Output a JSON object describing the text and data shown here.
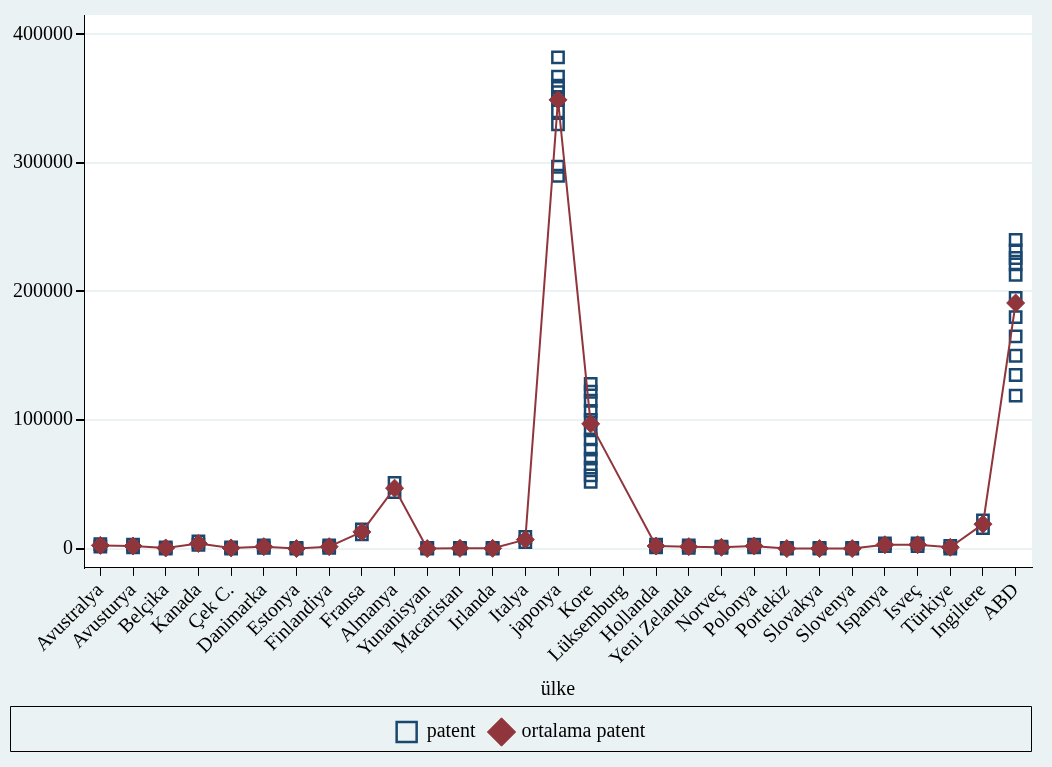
{
  "chart_data": {
    "type": "line",
    "xlabel": "ülke",
    "categories": [
      "Avustralya",
      "Avusturya",
      "Belçika",
      "Kanada",
      "Çek C.",
      "Danimarka",
      "Estonya",
      "Finlandiya",
      "Fransa",
      "Almanya",
      "Yunanisyan",
      "Macaristan",
      "Irlanda",
      "Italya",
      "japonya",
      "Kore",
      "Lüksemburg",
      "Hollanda",
      "Yeni Zelanda",
      "Norveç",
      "Polonya",
      "Portekiz",
      "Slovakya",
      "Slovenya",
      "Ispanya",
      "Isveç",
      "Türkiye",
      "Ingiltere",
      "ABD"
    ],
    "series": [
      {
        "name": "patent",
        "type": "scatter",
        "marker": "square",
        "color": "#1a476f",
        "x": [
          "Avustralya",
          "Avustralya",
          "Avusturya",
          "Avusturya",
          "Belçika",
          "Belçika",
          "Kanada",
          "Kanada",
          "Çek C.",
          "Çek C.",
          "Danimarka",
          "Danimarka",
          "Estonya",
          "Estonya",
          "Finlandiya",
          "Finlandiya",
          "Fransa",
          "Fransa",
          "Almanya",
          "Almanya",
          "Yunanisyan",
          "Yunanisyan",
          "Macaristan",
          "Macaristan",
          "Irlanda",
          "Irlanda",
          "Italya",
          "Italya",
          "japonya",
          "japonya",
          "japonya",
          "japonya",
          "japonya",
          "japonya",
          "japonya",
          "japonya",
          "japonya",
          "Kore",
          "Kore",
          "Kore",
          "Kore",
          "Kore",
          "Kore",
          "Kore",
          "Kore",
          "Kore",
          "Kore",
          "Kore",
          "Kore",
          "Hollanda",
          "Hollanda",
          "Yeni Zelanda",
          "Yeni Zelanda",
          "Norveç",
          "Norveç",
          "Polonya",
          "Polonya",
          "Portekiz",
          "Portekiz",
          "Slovakya",
          "Slovakya",
          "Slovenya",
          "Slovenya",
          "Ispanya",
          "Ispanya",
          "Isveç",
          "Isveç",
          "Türkiye",
          "Türkiye",
          "Ingiltere",
          "Ingiltere",
          "ABD",
          "ABD",
          "ABD",
          "ABD",
          "ABD",
          "ABD",
          "ABD",
          "ABD",
          "ABD",
          "ABD",
          "ABD"
        ],
        "values": [
          1500,
          3500,
          1000,
          3000,
          0,
          1000,
          3000,
          5500,
          0,
          1000,
          500,
          2500,
          0,
          500,
          500,
          2500,
          11000,
          15000,
          44000,
          51000,
          0,
          500,
          0,
          500,
          0,
          500,
          5000,
          9000,
          382000,
          367000,
          360000,
          355000,
          350000,
          340000,
          330000,
          297000,
          290000,
          128000,
          122000,
          115000,
          107000,
          100000,
          92000,
          85000,
          77000,
          70000,
          63000,
          57000,
          52000,
          1000,
          3000,
          500,
          2500,
          500,
          1500,
          1000,
          3000,
          0,
          500,
          0,
          500,
          0,
          500,
          2000,
          4000,
          2000,
          4000,
          0,
          2000,
          16000,
          22000,
          240000,
          232000,
          226000,
          221000,
          213000,
          195000,
          180000,
          165000,
          150000,
          135000,
          119000
        ]
      },
      {
        "name": "ortalama patent",
        "type": "line",
        "marker": "diamond",
        "color": "#90353b",
        "values": [
          2500,
          2000,
          500,
          4000,
          500,
          1500,
          0,
          1500,
          13000,
          47000,
          0,
          200,
          200,
          7000,
          349000,
          97000,
          null,
          2000,
          1500,
          1000,
          2000,
          0,
          0,
          0,
          3000,
          3000,
          1000,
          19000,
          191000
        ]
      }
    ],
    "ylim": [
      -15000,
      415000
    ],
    "yticks": [
      0,
      100000,
      200000,
      300000,
      400000
    ],
    "grid": "y",
    "legend": "bottom"
  }
}
